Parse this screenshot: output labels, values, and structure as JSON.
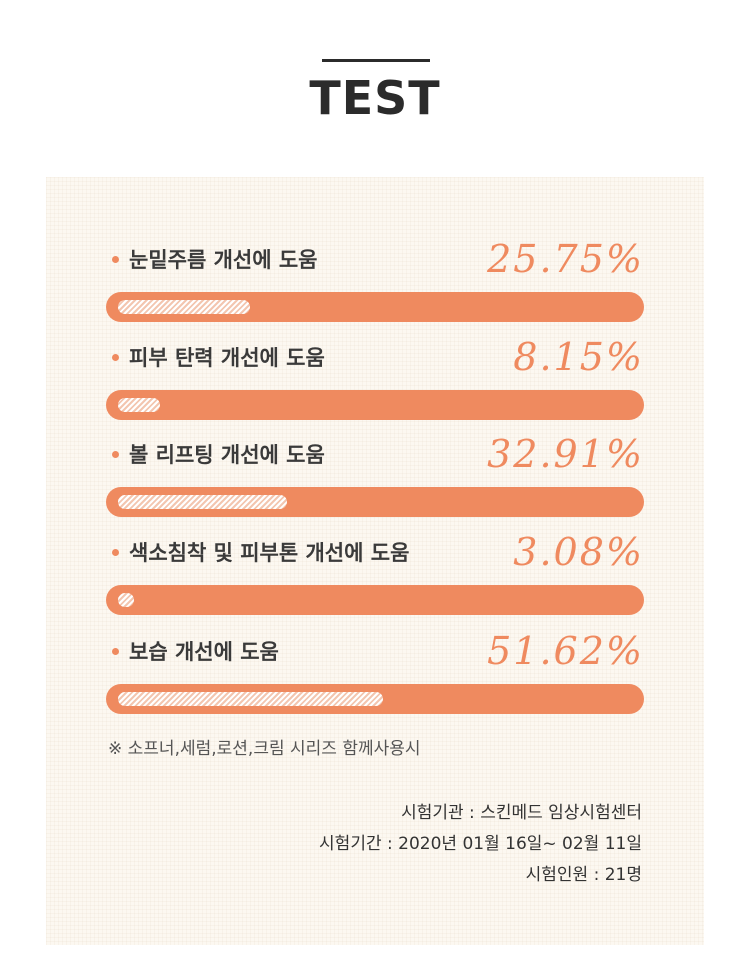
{
  "header": {
    "title": "TEST"
  },
  "results": [
    {
      "label": "눈밑주름 개선에 도움",
      "value_text": "25.75%",
      "value": 25.75
    },
    {
      "label": "피부 탄력 개선에 도움",
      "value_text": "8.15%",
      "value": 8.15
    },
    {
      "label": "볼 리프팅 개선에 도움",
      "value_text": "32.91%",
      "value": 32.91
    },
    {
      "label": "색소침착 및 피부톤 개선에 도움",
      "value_text": "3.08%",
      "value": 3.08
    },
    {
      "label": "보습 개선에 도움",
      "value_text": "51.62%",
      "value": 51.62
    }
  ],
  "note": "※ 소프너,세럼,로션,크림 시리즈 함께사용시",
  "info": {
    "institution": "시험기관 : 스킨메드 임상시험센터",
    "period": "시험기간 : 2020년 01월 16일~ 02월 11일",
    "subjects": "시험인원 : 21명"
  },
  "colors": {
    "accent": "#ef8a5f",
    "panel": "#fcf8f1",
    "text": "#2f2f2f"
  }
}
